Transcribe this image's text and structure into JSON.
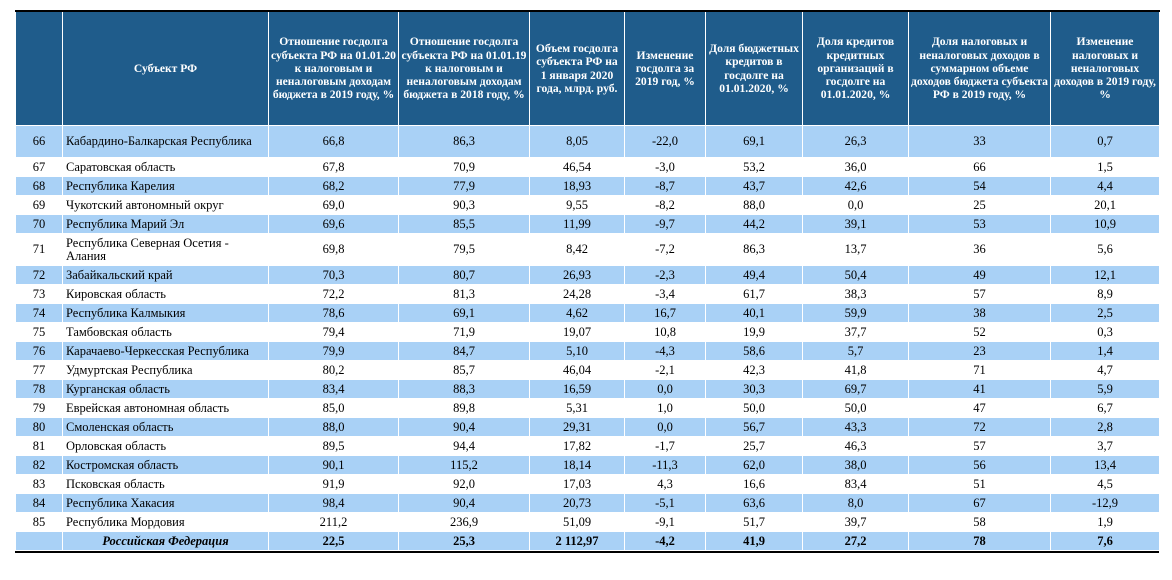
{
  "headers": [
    "",
    "Субъект РФ",
    "Отношение госдолга субъекта РФ на 01.01.20 к налоговым и неналоговым доходам бюджета в 2019 году, %",
    "Отношение госдолга субъекта РФ на 01.01.19 к налоговым и неналоговым доходам бюджета в 2018 году, %",
    "Объем госдолга субъекта РФ на 1 января 2020 года, млрд. руб.",
    "Изменение госдолга за 2019 год, %",
    "Доля бюджетных кредитов в госдолге на 01.01.2020, %",
    "Доля кредитов кредитных организаций в госдолге на 01.01.2020, %",
    "Доля налоговых и неналоговых доходов в суммарном объеме доходов бюджета субъекта РФ в 2019 году, %",
    "Изменение налоговых и неналоговых доходов в 2019 году, %"
  ],
  "rows": [
    {
      "rank": "66",
      "name": "Кабардино-Балкарская Республика",
      "c1": "66,8",
      "c2": "86,3",
      "c3": "8,05",
      "c4": "-22,0",
      "c5": "69,1",
      "c6": "26,3",
      "c7": "33",
      "c8": "0,7"
    },
    {
      "rank": "67",
      "name": "Саратовская область",
      "c1": "67,8",
      "c2": "70,9",
      "c3": "46,54",
      "c4": "-3,0",
      "c5": "53,2",
      "c6": "36,0",
      "c7": "66",
      "c8": "1,5"
    },
    {
      "rank": "68",
      "name": "Республика Карелия",
      "c1": "68,2",
      "c2": "77,9",
      "c3": "18,93",
      "c4": "-8,7",
      "c5": "43,7",
      "c6": "42,6",
      "c7": "54",
      "c8": "4,4"
    },
    {
      "rank": "69",
      "name": "Чукотский автономный округ",
      "c1": "69,0",
      "c2": "90,3",
      "c3": "9,55",
      "c4": "-8,2",
      "c5": "88,0",
      "c6": "0,0",
      "c7": "25",
      "c8": "20,1"
    },
    {
      "rank": "70",
      "name": "Республика Марий Эл",
      "c1": "69,6",
      "c2": "85,5",
      "c3": "11,99",
      "c4": "-9,7",
      "c5": "44,2",
      "c6": "39,1",
      "c7": "53",
      "c8": "10,9"
    },
    {
      "rank": "71",
      "name": "Республика Северная Осетия - Алания",
      "c1": "69,8",
      "c2": "79,5",
      "c3": "8,42",
      "c4": "-7,2",
      "c5": "86,3",
      "c6": "13,7",
      "c7": "36",
      "c8": "5,6"
    },
    {
      "rank": "72",
      "name": "Забайкальский край",
      "c1": "70,3",
      "c2": "80,7",
      "c3": "26,93",
      "c4": "-2,3",
      "c5": "49,4",
      "c6": "50,4",
      "c7": "49",
      "c8": "12,1"
    },
    {
      "rank": "73",
      "name": "Кировская область",
      "c1": "72,2",
      "c2": "81,3",
      "c3": "24,28",
      "c4": "-3,4",
      "c5": "61,7",
      "c6": "38,3",
      "c7": "57",
      "c8": "8,9"
    },
    {
      "rank": "74",
      "name": "Республика Калмыкия",
      "c1": "78,6",
      "c2": "69,1",
      "c3": "4,62",
      "c4": "16,7",
      "c5": "40,1",
      "c6": "59,9",
      "c7": "38",
      "c8": "2,5"
    },
    {
      "rank": "75",
      "name": "Тамбовская область",
      "c1": "79,4",
      "c2": "71,9",
      "c3": "19,07",
      "c4": "10,8",
      "c5": "19,9",
      "c6": "37,7",
      "c7": "52",
      "c8": "0,3"
    },
    {
      "rank": "76",
      "name": "Карачаево-Черкесская Республика",
      "c1": "79,9",
      "c2": "84,7",
      "c3": "5,10",
      "c4": "-4,3",
      "c5": "58,6",
      "c6": "5,7",
      "c7": "23",
      "c8": "1,4"
    },
    {
      "rank": "77",
      "name": "Удмуртская Республика",
      "c1": "80,2",
      "c2": "85,7",
      "c3": "46,04",
      "c4": "-2,1",
      "c5": "42,3",
      "c6": "41,8",
      "c7": "71",
      "c8": "4,7"
    },
    {
      "rank": "78",
      "name": "Курганская область",
      "c1": "83,4",
      "c2": "88,3",
      "c3": "16,59",
      "c4": "0,0",
      "c5": "30,3",
      "c6": "69,7",
      "c7": "41",
      "c8": "5,9"
    },
    {
      "rank": "79",
      "name": "Еврейская автономная область",
      "c1": "85,0",
      "c2": "89,8",
      "c3": "5,31",
      "c4": "1,0",
      "c5": "50,0",
      "c6": "50,0",
      "c7": "47",
      "c8": "6,7"
    },
    {
      "rank": "80",
      "name": "Смоленская область",
      "c1": "88,0",
      "c2": "90,4",
      "c3": "29,31",
      "c4": "0,0",
      "c5": "56,7",
      "c6": "43,3",
      "c7": "72",
      "c8": "2,8"
    },
    {
      "rank": "81",
      "name": "Орловская область",
      "c1": "89,5",
      "c2": "94,4",
      "c3": "17,82",
      "c4": "-1,7",
      "c5": "25,7",
      "c6": "46,3",
      "c7": "57",
      "c8": "3,7"
    },
    {
      "rank": "82",
      "name": "Костромская область",
      "c1": "90,1",
      "c2": "115,2",
      "c3": "18,14",
      "c4": "-11,3",
      "c5": "62,0",
      "c6": "38,0",
      "c7": "56",
      "c8": "13,4"
    },
    {
      "rank": "83",
      "name": "Псковская область",
      "c1": "91,9",
      "c2": "92,0",
      "c3": "17,03",
      "c4": "4,3",
      "c5": "16,6",
      "c6": "83,4",
      "c7": "51",
      "c8": "4,5"
    },
    {
      "rank": "84",
      "name": "Республика Хакасия",
      "c1": "98,4",
      "c2": "90,4",
      "c3": "20,73",
      "c4": "-5,1",
      "c5": "63,6",
      "c6": "8,0",
      "c7": "67",
      "c8": "-12,9"
    },
    {
      "rank": "85",
      "name": "Республика Мордовия",
      "c1": "211,2",
      "c2": "236,9",
      "c3": "51,09",
      "c4": "-9,1",
      "c5": "51,7",
      "c6": "39,7",
      "c7": "58",
      "c8": "1,9"
    }
  ],
  "total": {
    "rank": "",
    "name": "Российская Федерация",
    "c1": "22,5",
    "c2": "25,3",
    "c3": "2 112,97",
    "c4": "-4,2",
    "c5": "41,9",
    "c6": "27,2",
    "c7": "78",
    "c8": "7,6"
  },
  "colors": {
    "header_bg": "#1f5c8b",
    "row_highlight": "#a9d1f6",
    "header_text": "#ffffff"
  }
}
